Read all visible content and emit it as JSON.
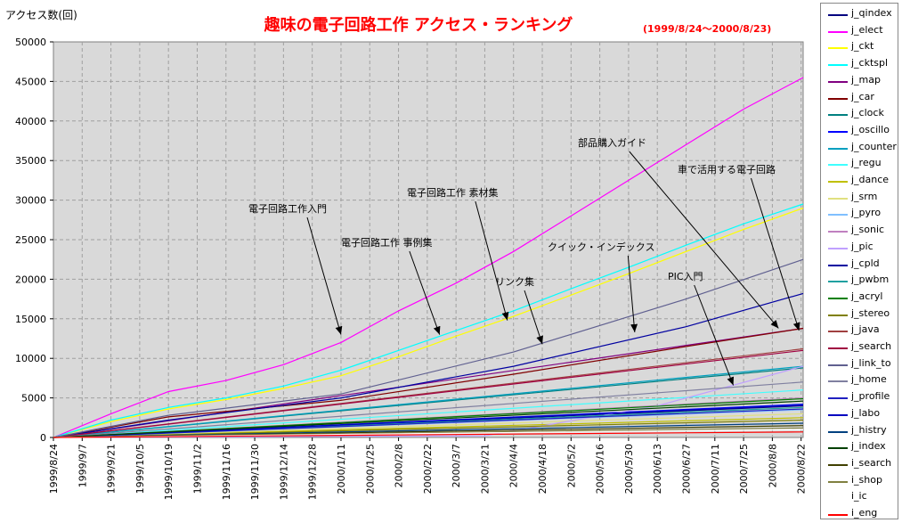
{
  "chart_data": {
    "type": "line",
    "title": "趣味の電子回路工作 アクセス・ランキング",
    "subtitle": "(1999/8/24～2000/8/23)",
    "ylabel": "アクセス数(回)",
    "xlabel": "",
    "ylim": [
      0,
      50000
    ],
    "yticks": [
      0,
      5000,
      10000,
      15000,
      20000,
      25000,
      30000,
      35000,
      40000,
      45000,
      50000
    ],
    "xlim": [
      "1999/8/24",
      "2000/8/23"
    ],
    "xticks": [
      "1999/8/24",
      "1999/9/7",
      "1999/9/21",
      "1999/10/5",
      "1999/10/19",
      "1999/11/2",
      "1999/11/16",
      "1999/11/30",
      "1999/12/14",
      "1999/12/28",
      "2000/1/11",
      "2000/1/25",
      "2000/2/8",
      "2000/2/22",
      "2000/3/7",
      "2000/3/21",
      "2000/4/4",
      "2000/4/18",
      "2000/5/2",
      "2000/5/16",
      "2000/5/30",
      "2000/6/13",
      "2000/6/27",
      "2000/7/11",
      "2000/7/25",
      "2000/8/8",
      "2000/8/22"
    ],
    "grid": true,
    "legend_position": "right",
    "series": [
      {
        "name": "j_qindex",
        "color": "#000080",
        "x": [
          "1999/8/24",
          "2000/8/23"
        ],
        "values": [
          0,
          4000
        ]
      },
      {
        "name": "j_elect",
        "color": "#ff00ff",
        "x": [
          "1999/8/24",
          "1999/9/21",
          "1999/10/19",
          "1999/11/16",
          "1999/12/14",
          "2000/1/11",
          "2000/2/8",
          "2000/3/7",
          "2000/4/4",
          "2000/5/2",
          "2000/5/30",
          "2000/6/27",
          "2000/7/25",
          "2000/8/23"
        ],
        "values": [
          0,
          3000,
          5800,
          7200,
          9200,
          12000,
          16000,
          19500,
          23500,
          28000,
          32500,
          37000,
          41500,
          45500
        ]
      },
      {
        "name": "j_ckt",
        "color": "#ffff00",
        "x": [
          "1999/8/24",
          "1999/9/21",
          "1999/10/19",
          "1999/11/16",
          "1999/12/14",
          "2000/1/11",
          "2000/2/8",
          "2000/3/7",
          "2000/4/4",
          "2000/5/2",
          "2000/5/30",
          "2000/6/27",
          "2000/7/25",
          "2000/8/23"
        ],
        "values": [
          0,
          2000,
          3600,
          4800,
          6200,
          7800,
          10200,
          12800,
          15300,
          18000,
          20700,
          23500,
          26300,
          29000
        ]
      },
      {
        "name": "j_cktspl",
        "color": "#00ffff",
        "x": [
          "1999/8/24",
          "1999/9/21",
          "1999/10/19",
          "1999/11/16",
          "1999/12/14",
          "2000/1/11",
          "2000/2/8",
          "2000/3/7",
          "2000/4/4",
          "2000/5/2",
          "2000/5/30",
          "2000/6/27",
          "2000/7/25",
          "2000/8/23"
        ],
        "values": [
          0,
          2200,
          3800,
          5000,
          6500,
          8500,
          11000,
          13500,
          16000,
          18800,
          21500,
          24300,
          27000,
          29500
        ]
      },
      {
        "name": "j_map",
        "color": "#800080",
        "x": [
          "1999/8/24",
          "2000/8/23"
        ],
        "values": [
          0,
          13800
        ]
      },
      {
        "name": "j_car",
        "color": "#800000",
        "x": [
          "1999/8/24",
          "1999/10/19",
          "2000/1/11",
          "2000/4/4",
          "2000/6/27",
          "2000/8/23"
        ],
        "values": [
          0,
          2600,
          4700,
          8000,
          11500,
          13800
        ]
      },
      {
        "name": "j_clock",
        "color": "#008080",
        "x": [
          "1999/8/24",
          "2000/8/23"
        ],
        "values": [
          0,
          8800
        ]
      },
      {
        "name": "j_oscillo",
        "color": "#0000ff",
        "x": [
          "1999/8/24",
          "2000/8/23"
        ],
        "values": [
          0,
          4200
        ]
      },
      {
        "name": "j_counter",
        "color": "#00a0c0",
        "x": [
          "1999/8/24",
          "2000/8/23"
        ],
        "values": [
          0,
          9000
        ]
      },
      {
        "name": "j_regu",
        "color": "#40ffff",
        "x": [
          "1999/8/24",
          "2000/8/23"
        ],
        "values": [
          0,
          6000
        ]
      },
      {
        "name": "j_dance",
        "color": "#c0c000",
        "x": [
          "1999/8/24",
          "2000/8/23"
        ],
        "values": [
          0,
          2500
        ]
      },
      {
        "name": "j_srm",
        "color": "#e0e080",
        "x": [
          "1999/8/24",
          "2000/8/23"
        ],
        "values": [
          0,
          3000
        ]
      },
      {
        "name": "j_pyro",
        "color": "#80c0ff",
        "x": [
          "1999/8/24",
          "2000/8/23"
        ],
        "values": [
          0,
          3500
        ]
      },
      {
        "name": "j_sonic",
        "color": "#c080c0",
        "x": [
          "1999/8/24",
          "2000/8/23"
        ],
        "values": [
          0,
          5000
        ]
      },
      {
        "name": "j_pic",
        "color": "#c0a0ff",
        "x": [
          "1999/8/24",
          "2000/3/21",
          "2000/6/13",
          "2000/8/23"
        ],
        "values": [
          0,
          200,
          4000,
          9000
        ]
      },
      {
        "name": "j_cpld",
        "color": "#0000a0",
        "x": [
          "1999/8/24",
          "1999/10/19",
          "2000/1/11",
          "2000/4/4",
          "2000/6/27",
          "2000/8/23"
        ],
        "values": [
          0,
          2200,
          5000,
          9000,
          14000,
          18200
        ]
      },
      {
        "name": "j_pwbm",
        "color": "#20a0a0",
        "x": [
          "1999/8/24",
          "2000/8/23"
        ],
        "values": [
          0,
          3800
        ]
      },
      {
        "name": "j_acryl",
        "color": "#008000",
        "x": [
          "1999/8/24",
          "2000/8/23"
        ],
        "values": [
          0,
          4900
        ]
      },
      {
        "name": "j_stereo",
        "color": "#808000",
        "x": [
          "1999/8/24",
          "2000/8/23"
        ],
        "values": [
          0,
          2200
        ]
      },
      {
        "name": "j_java",
        "color": "#a04040",
        "x": [
          "1999/8/24",
          "2000/8/23"
        ],
        "values": [
          0,
          11200
        ]
      },
      {
        "name": "j_search",
        "color": "#a00040",
        "x": [
          "1999/8/24",
          "2000/8/23"
        ],
        "values": [
          0,
          11000
        ]
      },
      {
        "name": "j_link_to",
        "color": "#606090",
        "x": [
          "1999/8/24",
          "1999/10/19",
          "2000/1/11",
          "2000/4/4",
          "2000/6/27",
          "2000/8/23"
        ],
        "values": [
          0,
          2800,
          5500,
          10800,
          17500,
          22500
        ]
      },
      {
        "name": "j_home",
        "color": "#8080a0",
        "x": [
          "1999/8/24",
          "2000/8/23"
        ],
        "values": [
          0,
          7000
        ]
      },
      {
        "name": "j_profile",
        "color": "#2020c0",
        "x": [
          "1999/8/24",
          "2000/8/23"
        ],
        "values": [
          0,
          3600
        ]
      },
      {
        "name": "j_labo",
        "color": "#0000c0",
        "x": [
          "1999/8/24",
          "2000/8/23"
        ],
        "values": [
          0,
          4100
        ]
      },
      {
        "name": "j_histry",
        "color": "#004080",
        "x": [
          "1999/8/24",
          "2000/8/23"
        ],
        "values": [
          0,
          1800
        ]
      },
      {
        "name": "j_index",
        "color": "#004000",
        "x": [
          "1999/8/24",
          "2000/8/23"
        ],
        "values": [
          0,
          4600
        ]
      },
      {
        "name": "i_search",
        "color": "#404000",
        "x": [
          "1999/8/24",
          "2000/8/23"
        ],
        "values": [
          0,
          1500
        ]
      },
      {
        "name": "i_shop",
        "color": "#808040",
        "x": [
          "1999/8/24",
          "2000/8/23"
        ],
        "values": [
          0,
          1200
        ]
      },
      {
        "name": "i_ic",
        "color": "#ffffff",
        "x": [
          "1999/8/24",
          "2000/8/23"
        ],
        "values": [
          0,
          1000
        ]
      },
      {
        "name": "i_eng",
        "color": "#ff0000",
        "x": [
          "1999/8/24",
          "2000/8/23"
        ],
        "values": [
          0,
          700
        ]
      }
    ],
    "annotations": [
      {
        "text": "電子回路工作入門",
        "target": [
          "2000/1/11",
          13000
        ]
      },
      {
        "text": "電子回路工作 事例集",
        "target": [
          "2000/2/28",
          13000
        ]
      },
      {
        "text": "電子回路工作 素材集",
        "target": [
          "2000/4/1",
          14800
        ]
      },
      {
        "text": "リンク集",
        "target": [
          "2000/4/18",
          11800
        ]
      },
      {
        "text": "クイック・インデックス",
        "target": [
          "2000/6/2",
          13300
        ]
      },
      {
        "text": "部品購入ガイド",
        "target": [
          "2000/8/11",
          13800
        ]
      },
      {
        "text": "車で活用する電子回路",
        "target": [
          "2000/8/21",
          13500
        ]
      },
      {
        "text": "PIC入門",
        "target": [
          "2000/7/20",
          6600
        ]
      }
    ]
  }
}
